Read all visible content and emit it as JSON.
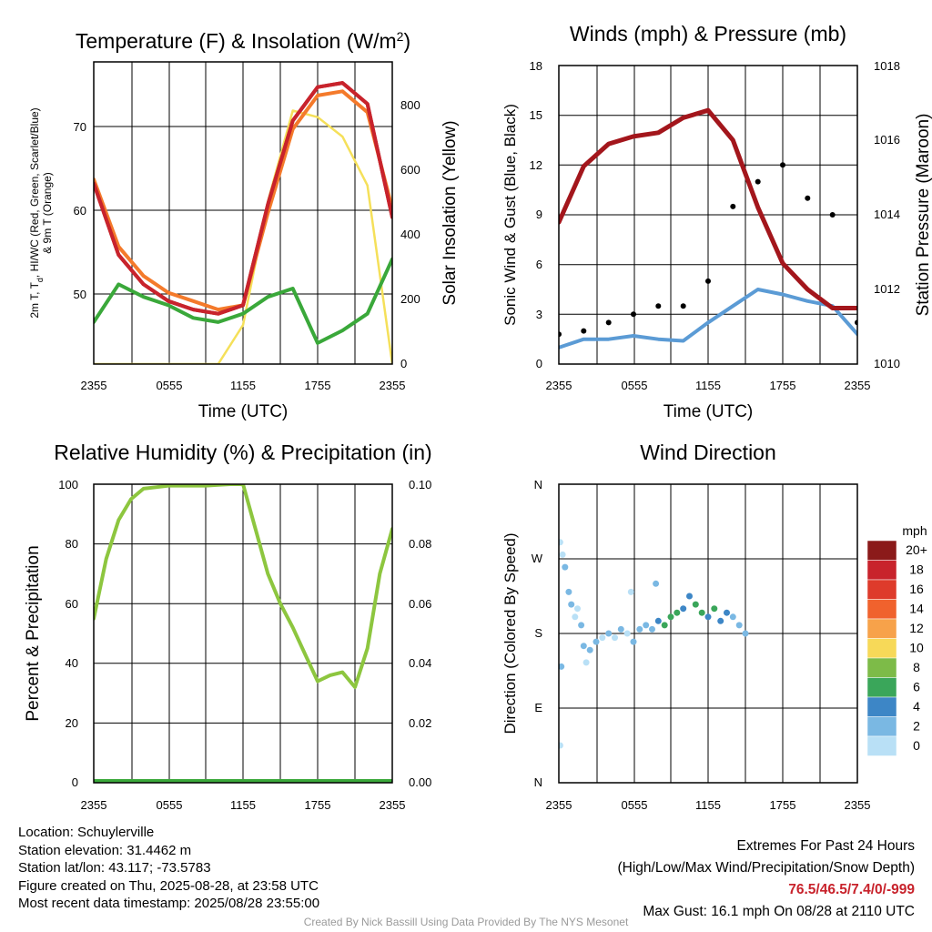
{
  "colors": {
    "red": "#c8232c",
    "scarlet": "#b71c1c",
    "orange": "#f47a2b",
    "green": "#3aa83a",
    "yellow": "#f5e05a",
    "blue": "#5b9bd5",
    "black": "#000000",
    "maroon": "#a3161c",
    "rh": "#8dc63f",
    "precip": "#3aa83a"
  },
  "time_ticks": [
    "2355",
    "0555",
    "1155",
    "1755",
    "2355"
  ],
  "panels": {
    "temperature": {
      "title_main": "Temperature (F) & Insolation (W/m",
      "title_sup": "2",
      "title_end": ")",
      "xlabel": "Time (UTC)",
      "ylabel_left_line1": "2m T, T",
      "ylabel_left_sub": "d",
      "ylabel_left_rest": ", HI/WC (Red, Green, Scarlet/Blue)",
      "ylabel_left_line2": "& 9m T (Orange)",
      "ylabel_right": "Solar Insolation (Yellow)",
      "left_ticks": [
        "50",
        "60",
        "70"
      ],
      "right_ticks": [
        "0",
        "200",
        "400",
        "600",
        "800"
      ]
    },
    "winds": {
      "title": "Winds (mph) & Pressure (mb)",
      "xlabel": "Time (UTC)",
      "ylabel_left": "Sonic Wind & Gust (Blue, Black)",
      "ylabel_right": "Station Pressure (Maroon)",
      "left_ticks": [
        "0",
        "3",
        "6",
        "9",
        "12",
        "15",
        "18"
      ],
      "right_ticks": [
        "1010",
        "1012",
        "1014",
        "1016",
        "1018"
      ]
    },
    "humidity": {
      "title": "Relative Humidity (%) & Precipitation (in)",
      "ylabel_left": "Percent & Precipitation",
      "left_ticks": [
        "0",
        "20",
        "40",
        "60",
        "80",
        "100"
      ],
      "right_ticks": [
        "0.00",
        "0.02",
        "0.04",
        "0.06",
        "0.08",
        "0.10"
      ]
    },
    "direction": {
      "title": "Wind Direction",
      "ylabel_left": "Direction (Colored By Speed)",
      "left_ticks": [
        "N",
        "E",
        "S",
        "W",
        "N"
      ],
      "legend_title": "mph",
      "legend_labels": [
        "20+",
        "18",
        "16",
        "14",
        "12",
        "10",
        "8",
        "6",
        "4",
        "2",
        "0"
      ],
      "legend_colors": [
        "#8b1a1a",
        "#c8232c",
        "#de3b2b",
        "#f0622d",
        "#f7a24a",
        "#f7d958",
        "#7dbb48",
        "#3aa65a",
        "#3d86c6",
        "#7ab8e3",
        "#b9e0f6"
      ]
    }
  },
  "chart_data": [
    {
      "type": "line",
      "title": "Temperature (F) & Insolation (W/m2)",
      "xlabel": "Time (UTC)",
      "ylabel": "2m T, Td, HI/WC (Red, Green, Scarlet/Blue) & 9m T (Orange)",
      "y2label": "Solar Insolation (Yellow)",
      "x": [
        0,
        2,
        4,
        6,
        8,
        10,
        12,
        14,
        16,
        18,
        20,
        22,
        24
      ],
      "x_tick_labels": [
        "2355",
        "0555",
        "1155",
        "1755",
        "2355"
      ],
      "ylim": [
        42,
        78
      ],
      "y2lim": [
        0,
        930
      ],
      "grid": true,
      "series": [
        {
          "name": "2m T",
          "axis": "left",
          "values": [
            63.5,
            55,
            51.5,
            49.5,
            48.5,
            48,
            49,
            61,
            71,
            75,
            75.5,
            73,
            59.5
          ]
        },
        {
          "name": "Td",
          "axis": "left",
          "values": [
            47,
            51.5,
            50,
            49,
            47.5,
            47,
            48,
            50,
            51,
            44.5,
            46,
            48,
            54.5
          ]
        },
        {
          "name": "HI/WC",
          "axis": "left",
          "values": [
            63.5,
            55,
            51.5,
            49.5,
            48.5,
            48,
            49,
            61,
            71,
            75,
            75.5,
            73,
            59.5
          ]
        },
        {
          "name": "9m T",
          "axis": "left",
          "values": [
            64,
            56,
            52.5,
            50.5,
            49.5,
            48.5,
            49,
            60,
            70,
            74,
            74.5,
            72,
            60.5
          ]
        },
        {
          "name": "Solar Insolation",
          "axis": "right",
          "values": [
            0,
            0,
            0,
            0,
            0,
            0,
            120,
            500,
            780,
            760,
            700,
            550,
            0
          ]
        }
      ]
    },
    {
      "type": "line",
      "title": "Winds (mph) & Pressure (mb)",
      "xlabel": "Time (UTC)",
      "ylabel": "Sonic Wind & Gust (Blue, Black)",
      "y2label": "Station Pressure (Maroon)",
      "x": [
        0,
        2,
        4,
        6,
        8,
        10,
        12,
        14,
        16,
        18,
        20,
        22,
        24
      ],
      "x_tick_labels": [
        "2355",
        "0555",
        "1155",
        "1755",
        "2355"
      ],
      "ylim": [
        0,
        18
      ],
      "y2lim": [
        1010,
        1018
      ],
      "grid": true,
      "series": [
        {
          "name": "Sonic Wind",
          "axis": "left",
          "values": [
            1,
            1.5,
            1.5,
            1.7,
            1.5,
            1.4,
            2.5,
            3.5,
            4.5,
            4.2,
            3.8,
            3.5,
            1.8
          ]
        },
        {
          "name": "Gust",
          "axis": "left",
          "values": [
            1.8,
            2,
            2.5,
            3,
            3.5,
            3.5,
            5,
            9.5,
            11,
            12,
            10,
            9,
            2.5
          ]
        },
        {
          "name": "Station Pressure",
          "axis": "right",
          "values": [
            1013.8,
            1015.3,
            1015.9,
            1016.1,
            1016.2,
            1016.6,
            1016.8,
            1016.0,
            1014.2,
            1012.7,
            1012.0,
            1011.5,
            1011.5
          ]
        }
      ]
    },
    {
      "type": "line",
      "title": "Relative Humidity (%) & Precipitation (in)",
      "ylabel": "Percent & Precipitation",
      "x": [
        0,
        1,
        2,
        3,
        4,
        5,
        6,
        7,
        8,
        9,
        10,
        11,
        12,
        13,
        14,
        15,
        16,
        17,
        18,
        19,
        20,
        21,
        22,
        23,
        24
      ],
      "x_tick_labels": [
        "2355",
        "0555",
        "1155",
        "1755",
        "2355"
      ],
      "ylim": [
        0,
        100
      ],
      "y2lim": [
        0,
        0.1
      ],
      "grid": true,
      "series": [
        {
          "name": "Relative Humidity",
          "axis": "left",
          "values": [
            55,
            75,
            88,
            95,
            98.5,
            99,
            99.5,
            99.5,
            99.5,
            99.5,
            99.8,
            100,
            100,
            85,
            70,
            60,
            52,
            43,
            34,
            36,
            37,
            32,
            45,
            70,
            85
          ]
        },
        {
          "name": "Precipitation",
          "axis": "right",
          "values": [
            0,
            0,
            0,
            0,
            0,
            0,
            0,
            0,
            0,
            0,
            0,
            0,
            0,
            0,
            0,
            0,
            0,
            0,
            0,
            0,
            0,
            0,
            0,
            0,
            0
          ]
        }
      ]
    },
    {
      "type": "scatter",
      "title": "Wind Direction",
      "ylabel": "Direction (Colored By Speed)",
      "x_tick_labels": [
        "2355",
        "0555",
        "1155",
        "1755",
        "2355"
      ],
      "y_tick_labels": [
        "N",
        "E",
        "S",
        "W",
        "N"
      ],
      "ylim": [
        0,
        360
      ],
      "grid": true,
      "legend": "right",
      "series": [
        {
          "name": "Direction",
          "points": [
            [
              0.1,
              290,
              0
            ],
            [
              0.3,
              275,
              1
            ],
            [
              0.5,
              260,
              2
            ],
            [
              0.8,
              230,
              2
            ],
            [
              1.0,
              215,
              2
            ],
            [
              1.3,
              200,
              1
            ],
            [
              0.2,
              140,
              2
            ],
            [
              0.1,
              45,
              0
            ],
            [
              1.5,
              210,
              1
            ],
            [
              1.8,
              190,
              2
            ],
            [
              2.0,
              165,
              2
            ],
            [
              2.2,
              145,
              1
            ],
            [
              2.5,
              160,
              2
            ],
            [
              3.0,
              170,
              2
            ],
            [
              3.5,
              175,
              1
            ],
            [
              4.0,
              180,
              2
            ],
            [
              4.5,
              175,
              1
            ],
            [
              5.0,
              185,
              2
            ],
            [
              5.5,
              180,
              1
            ],
            [
              6.0,
              170,
              2
            ],
            [
              6.5,
              185,
              2
            ],
            [
              7.0,
              190,
              3
            ],
            [
              7.5,
              185,
              3
            ],
            [
              8.0,
              195,
              4
            ],
            [
              8.5,
              190,
              6
            ],
            [
              9.0,
              200,
              6
            ],
            [
              9.5,
              205,
              6
            ],
            [
              10.0,
              210,
              4
            ],
            [
              10.5,
              225,
              4
            ],
            [
              11.0,
              215,
              6
            ],
            [
              11.5,
              205,
              6
            ],
            [
              12.0,
              200,
              4
            ],
            [
              12.5,
              210,
              6
            ],
            [
              13.0,
              195,
              4
            ],
            [
              13.5,
              205,
              4
            ],
            [
              14.0,
              200,
              3
            ],
            [
              14.5,
              190,
              2
            ],
            [
              15.0,
              180,
              2
            ],
            [
              7.8,
              240,
              2
            ],
            [
              5.8,
              230,
              1
            ]
          ]
        }
      ]
    }
  ],
  "footer": {
    "location": "Location: Schuylerville",
    "elevation": "Station elevation: 31.4462 m",
    "latlon": "Station lat/lon: 43.117; -73.5783",
    "created": "Figure created on Thu, 2025-08-28, at 23:58 UTC",
    "recent": "Most recent data timestamp: 2025/08/28 23:55:00",
    "extremes_title": "Extremes For Past 24 Hours",
    "extremes_subtitle": "(High/Low/Max Wind/Precipitation/Snow Depth)",
    "extremes_values": "76.5/46.5/7.4/0/-999",
    "max_gust": "Max Gust: 16.1 mph On 08/28 at 2110 UTC",
    "credit": "Created By Nick Bassill Using Data Provided By The NYS Mesonet"
  }
}
